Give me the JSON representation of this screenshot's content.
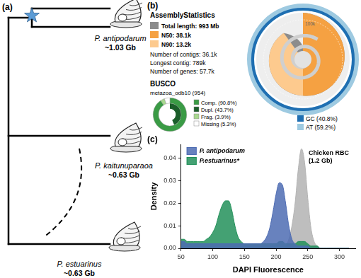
{
  "panel_a": {
    "label": "(a)",
    "taxa": [
      {
        "name": "P. antipodarum",
        "genome_size": "~1.03 Gb"
      },
      {
        "name": "P. kaitunuparaoa",
        "genome_size": "~0.63 Gb"
      },
      {
        "name": "P. estuarinus",
        "genome_size": "~0.63 Gb"
      }
    ]
  },
  "panel_b": {
    "label": "(b)",
    "title": "AssemblyStatistics",
    "total": {
      "label": "Total length: 993 Mb",
      "color": "#8c8c8c"
    },
    "n50": {
      "label": "N50: 38.1k",
      "value": 38100,
      "percentile": 50,
      "color": "#f5a142"
    },
    "n90": {
      "label": "N90: 13.2k",
      "value": 13200,
      "percentile": 90,
      "color": "#fdca8e"
    },
    "contigs": "Number of contigs: 36.1k",
    "longest": {
      "label": "Longest contig: 789k",
      "value": 789000
    },
    "genes": "Number of genes: 57.7k",
    "scale_mark": {
      "label": "100k",
      "value": 100000
    },
    "gc": {
      "label": "GC (40.8%)",
      "value": 40.8,
      "color": "#1f6fb2"
    },
    "at": {
      "label": "AT (59.2%)",
      "value": 59.2,
      "color": "#9ecae1"
    },
    "busco": {
      "title": "BUSCO",
      "subtitle": "metazoa_odb10 (954)",
      "complete": {
        "label": "Comp. (90.8%)",
        "value": 90.8,
        "color": "#3a9b45"
      },
      "duplicated": {
        "label": "Dupl. (43.7%)",
        "value": 43.7,
        "color": "#1b5e2a"
      },
      "fragmented": {
        "label": "Frag. (3.9%)",
        "value": 3.9,
        "color": "#a8d98f"
      },
      "missing": {
        "label": "Missing (5.3%)",
        "value": 5.3,
        "color": "#ffffff"
      }
    }
  },
  "panel_c": {
    "label": "(c)"
  },
  "chart_data": {
    "type": "line",
    "xlabel": "DAPI Fluorescence",
    "ylabel": "Density",
    "x": [
      50,
      55,
      60,
      65,
      70,
      75,
      80,
      85,
      90,
      95,
      100,
      105,
      110,
      115,
      120,
      125,
      130,
      135,
      140,
      145,
      150,
      155,
      160,
      165,
      170,
      175,
      180,
      185,
      190,
      195,
      200,
      205,
      210,
      215,
      220,
      225,
      230,
      235,
      240,
      245,
      250,
      255,
      260,
      265,
      270,
      275,
      280,
      285,
      290,
      295,
      300,
      305,
      310,
      315
    ],
    "series": [
      {
        "name": "P. antipodarum",
        "color": "#4e6cb3",
        "values": [
          0.003,
          0.003,
          0.002,
          0.002,
          0.002,
          0.002,
          0.002,
          0.002,
          0.002,
          0.002,
          0.002,
          0.002,
          0.002,
          0.002,
          0.002,
          0.002,
          0.002,
          0.002,
          0.002,
          0.002,
          0.002,
          0.002,
          0.002,
          0.002,
          0.002,
          0.002,
          0.003,
          0.005,
          0.009,
          0.016,
          0.024,
          0.029,
          0.028,
          0.02,
          0.01,
          0.004,
          0.002,
          0.001,
          0.001,
          0.001,
          0.001,
          0,
          0,
          0,
          0,
          0,
          0,
          0,
          0,
          0,
          0,
          0,
          0,
          0
        ]
      },
      {
        "name": "P.estuarinus*",
        "color": "#23915a",
        "values": [
          0.004,
          0.004,
          0.003,
          0.003,
          0.003,
          0.003,
          0.003,
          0.003,
          0.004,
          0.005,
          0.007,
          0.01,
          0.015,
          0.019,
          0.021,
          0.021,
          0.017,
          0.01,
          0.005,
          0.003,
          0.002,
          0.002,
          0.002,
          0.002,
          0.002,
          0.002,
          0.002,
          0.002,
          0.002,
          0.002,
          0.002,
          0.003,
          0.003,
          0.002,
          0.002,
          0.002,
          0.002,
          0.003,
          0.003,
          0.003,
          0.002,
          0.001,
          0.001,
          0.001,
          0,
          0,
          0,
          0,
          0,
          0,
          0,
          0,
          0,
          0
        ]
      },
      {
        "color": "#b3b3b3",
        "annotation": [
          "Chicken RBC",
          "(1.2 Gb)"
        ],
        "values": [
          0,
          0,
          0,
          0,
          0,
          0,
          0,
          0,
          0,
          0,
          0,
          0,
          0,
          0,
          0,
          0,
          0,
          0,
          0,
          0,
          0,
          0,
          0,
          0,
          0,
          0,
          0,
          0,
          0,
          0,
          0,
          0,
          0,
          0.001,
          0.004,
          0.01,
          0.02,
          0.035,
          0.044,
          0.038,
          0.022,
          0.009,
          0.003,
          0.001,
          0,
          0,
          0,
          0,
          0,
          0,
          0,
          0,
          0,
          0
        ]
      }
    ],
    "xlim": [
      50,
      325
    ],
    "xticks": [
      50,
      100,
      150,
      200,
      250,
      300
    ],
    "ylim": [
      0,
      0.046
    ],
    "yticks": [
      {
        "value": 0,
        "label": "0.00"
      },
      0.01,
      0.02,
      0.03,
      0.04
    ],
    "grid": false,
    "legend": "top-left"
  }
}
